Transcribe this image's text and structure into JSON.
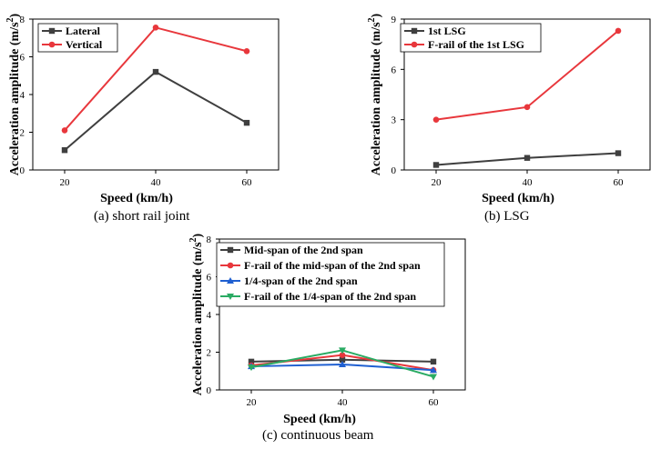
{
  "figure": {
    "captions": {
      "a": "(a) short rail joint",
      "b": "(b) LSG",
      "c": "(c) continuous beam"
    }
  },
  "chart_data": [
    {
      "id": "a",
      "type": "line",
      "xlabel": "Speed (km/h)",
      "ylabel_main": "Acceleration amplitude (m/s",
      "ylabel_sup": "2",
      "ylabel_close": ")",
      "x": [
        20,
        40,
        60
      ],
      "xlim": [
        13,
        67
      ],
      "ylim": [
        0,
        8
      ],
      "xticks": [
        20,
        40,
        60
      ],
      "yticks": [
        0,
        2,
        4,
        6,
        8
      ],
      "grid": false,
      "legend_position": "top-left",
      "series": [
        {
          "name": "Lateral",
          "values": [
            1.05,
            5.2,
            2.5
          ],
          "color": "#3f3f3f",
          "marker": "square"
        },
        {
          "name": "Vertical",
          "values": [
            2.1,
            7.55,
            6.3
          ],
          "color": "#e8373c",
          "marker": "circle"
        }
      ]
    },
    {
      "id": "b",
      "type": "line",
      "xlabel": "Speed (km/h)",
      "ylabel_main": "Acceleration amplitude (m/s",
      "ylabel_sup": "2",
      "ylabel_close": ")",
      "x": [
        20,
        40,
        60
      ],
      "xlim": [
        13,
        67
      ],
      "ylim": [
        0,
        9
      ],
      "xticks": [
        20,
        40,
        60
      ],
      "yticks": [
        0,
        3,
        6,
        9
      ],
      "grid": false,
      "legend_position": "top-left",
      "series": [
        {
          "name": "1st LSG",
          "values": [
            0.3,
            0.72,
            1.0
          ],
          "color": "#3f3f3f",
          "marker": "square"
        },
        {
          "name": "F-rail of the 1st LSG",
          "values": [
            3.0,
            3.75,
            8.3
          ],
          "color": "#e8373c",
          "marker": "circle"
        }
      ]
    },
    {
      "id": "c",
      "type": "line",
      "xlabel": "Speed (km/h)",
      "ylabel_main": "Acceleration amplitude (m/s",
      "ylabel_sup": "2",
      "ylabel_close": ")",
      "x": [
        20,
        40,
        60
      ],
      "xlim": [
        13,
        67
      ],
      "ylim": [
        0,
        8
      ],
      "xticks": [
        20,
        40,
        60
      ],
      "yticks": [
        0,
        2,
        4,
        6,
        8
      ],
      "grid": false,
      "legend_position": "top-left",
      "series": [
        {
          "name": "Mid-span of the 2nd span",
          "values": [
            1.5,
            1.6,
            1.5
          ],
          "color": "#3f3f3f",
          "marker": "square"
        },
        {
          "name": "F-rail of the mid-span of the 2nd span",
          "values": [
            1.3,
            1.85,
            1.05
          ],
          "color": "#e8373c",
          "marker": "circle"
        },
        {
          "name": "1/4-span of the 2nd span",
          "values": [
            1.25,
            1.35,
            1.05
          ],
          "color": "#1f5fd1",
          "marker": "triangle-up"
        },
        {
          "name": "F-rail of the 1/4-span of the 2nd span",
          "values": [
            1.2,
            2.1,
            0.7
          ],
          "color": "#2aab63",
          "marker": "triangle-down"
        }
      ]
    }
  ]
}
